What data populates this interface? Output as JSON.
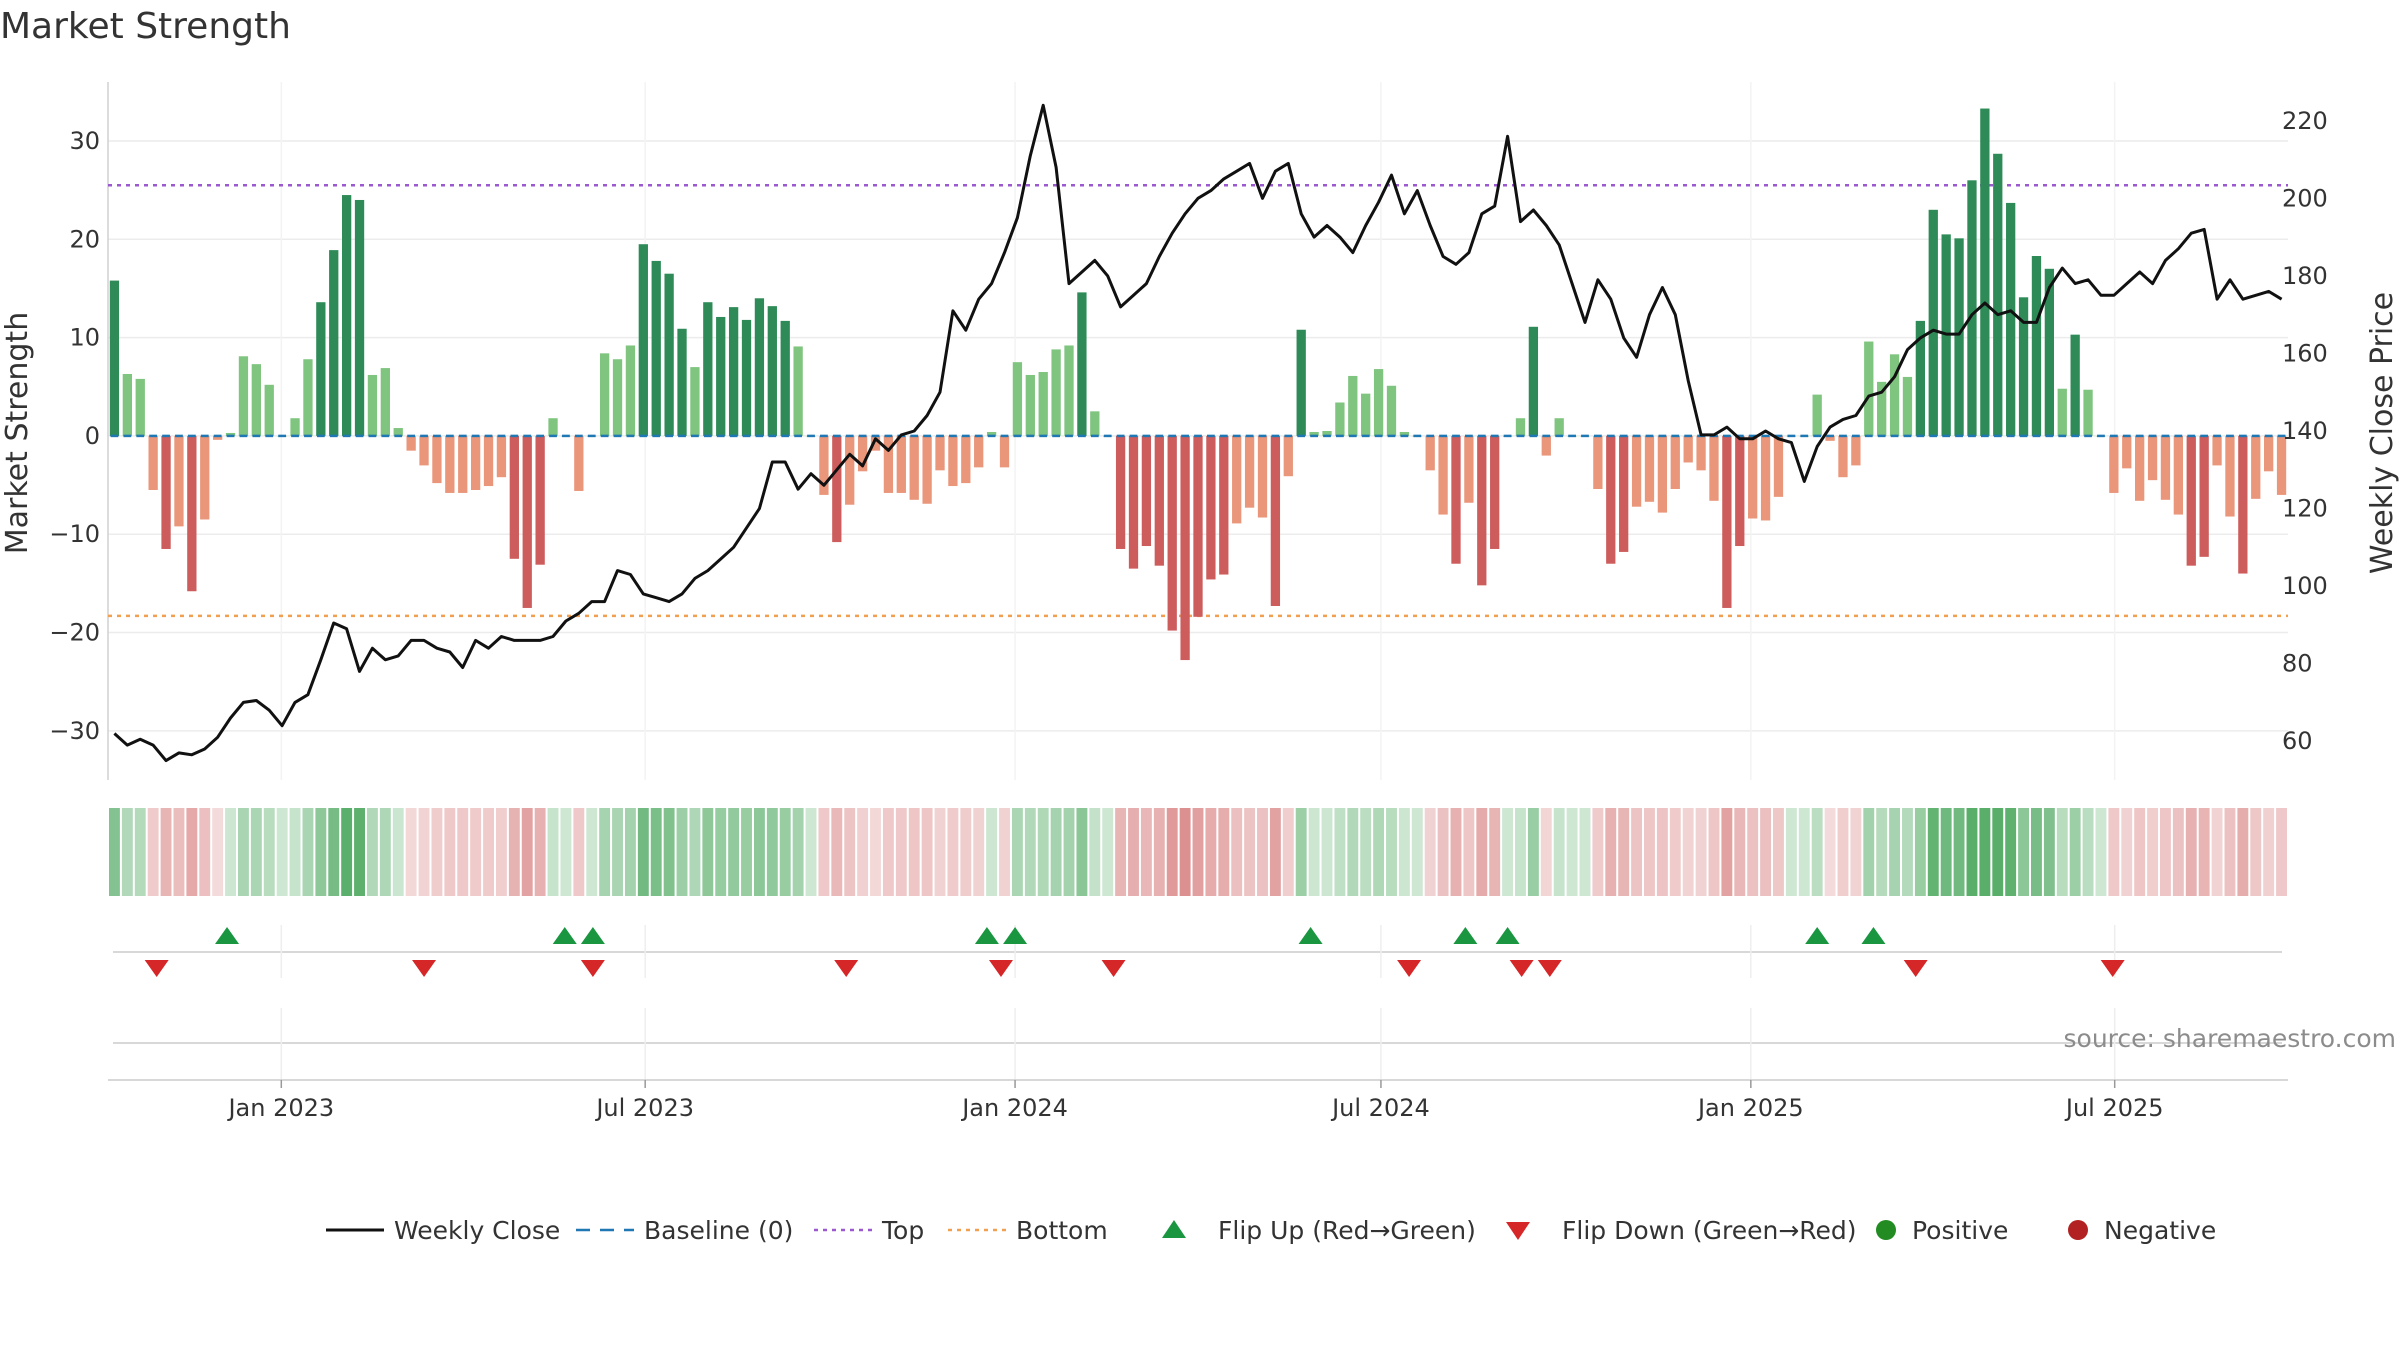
{
  "chart_data": {
    "type": "bar",
    "title": "Market Strength",
    "ylabel": "Market Strength",
    "y2label": "Weekly Close Price",
    "source": "source: sharemaestro.com",
    "ylim": [
      -35,
      36
    ],
    "y2lim": [
      50,
      230
    ],
    "yticks": [
      30,
      20,
      10,
      0,
      -10,
      -20,
      -30
    ],
    "ytick_labels": [
      "30",
      "20",
      "10",
      "0",
      "−10",
      "−20",
      "−30"
    ],
    "y2ticks": [
      220,
      200,
      180,
      160,
      140,
      120,
      100,
      80,
      60
    ],
    "top_line": 25.5,
    "bottom_line": -18.3,
    "baseline": 0,
    "x_start": "2022-10-10",
    "x_end": "2025-09-22",
    "xticks": [
      {
        "date": "2023-01-01",
        "label": "Jan 2023"
      },
      {
        "date": "2023-07-01",
        "label": "Jul 2023"
      },
      {
        "date": "2024-01-01",
        "label": "Jan 2024"
      },
      {
        "date": "2024-07-01",
        "label": "Jul 2024"
      },
      {
        "date": "2025-01-01",
        "label": "Jan 2025"
      },
      {
        "date": "2025-07-01",
        "label": "Jul 2025"
      }
    ],
    "strength": [
      15.8,
      6.3,
      5.8,
      -5.5,
      -11.5,
      -9.2,
      -15.8,
      -8.5,
      -0.4,
      0.3,
      8.1,
      7.3,
      5.2,
      0,
      1.8,
      7.8,
      13.6,
      18.9,
      24.5,
      24.0,
      6.2,
      6.9,
      0.8,
      -1.5,
      -3.0,
      -4.8,
      -5.8,
      -5.8,
      -5.5,
      -5.1,
      -4.2,
      -12.5,
      -17.5,
      -13.1,
      1.8,
      0,
      -5.6,
      0,
      8.4,
      7.8,
      9.2,
      19.5,
      17.8,
      16.5,
      10.9,
      7.0,
      13.6,
      12.1,
      13.1,
      11.8,
      14.0,
      13.2,
      11.7,
      9.1,
      0,
      -6.0,
      -10.8,
      -7.0,
      -3.6,
      -1.5,
      -5.8,
      -5.8,
      -6.5,
      -6.9,
      -3.5,
      -5.1,
      -4.8,
      -3.2,
      0.4,
      -3.2,
      7.5,
      6.2,
      6.5,
      8.8,
      9.2,
      14.6,
      2.5,
      0,
      -11.5,
      -13.5,
      -11.2,
      -13.2,
      -19.8,
      -22.8,
      -18.4,
      -14.6,
      -14.1,
      -8.9,
      -7.3,
      -8.3,
      -17.3,
      -4.1,
      10.8,
      0.4,
      0.5,
      3.4,
      6.1,
      4.3,
      6.8,
      5.1,
      0.4,
      0,
      -3.5,
      -8.0,
      -13.0,
      -6.8,
      -15.2,
      -11.5,
      0,
      1.8,
      11.1,
      -2.0,
      1.8,
      0,
      0,
      -5.4,
      -13.0,
      -11.8,
      -7.2,
      -6.7,
      -7.8,
      -5.4,
      -2.7,
      -3.5,
      -6.6,
      -17.5,
      -11.2,
      -8.4,
      -8.6,
      -6.2,
      0,
      0,
      4.2,
      -0.5,
      -4.2,
      -3.0,
      9.6,
      5.5,
      8.3,
      6.0,
      11.7,
      23.0,
      20.5,
      20.1,
      26.0,
      33.3,
      28.7,
      23.7,
      14.1,
      18.3,
      17.0,
      4.8,
      10.3,
      4.7,
      0,
      -5.8,
      -3.3,
      -6.6,
      -4.5,
      -6.5,
      -8.0,
      -13.2,
      -12.3,
      -3.0,
      -8.2,
      -14.0,
      -6.4,
      -3.6,
      -6.0
    ],
    "close": [
      62,
      59,
      60.5,
      59,
      55,
      57,
      56.5,
      58,
      61,
      66,
      70,
      70.5,
      68,
      64,
      70,
      72,
      81,
      90.5,
      89,
      78,
      84,
      81,
      82,
      86,
      86,
      84,
      83,
      79,
      86,
      84,
      87,
      86,
      86,
      86,
      87,
      91,
      93,
      96,
      96,
      104,
      103,
      98,
      97,
      96,
      98,
      102,
      104,
      107,
      110,
      115,
      120,
      132,
      132,
      125,
      129,
      126,
      130,
      134,
      131,
      138,
      135,
      139,
      140,
      144,
      150,
      171,
      166,
      174,
      178,
      186,
      195,
      211,
      224,
      208,
      178,
      181,
      184,
      180,
      172,
      175,
      178,
      185,
      191,
      196,
      200,
      202,
      205,
      207,
      209,
      200,
      207,
      209,
      196,
      190,
      193,
      190,
      186,
      193,
      199,
      206,
      196,
      202,
      193,
      185,
      183,
      186,
      196,
      198,
      216,
      194,
      197,
      193,
      188,
      178,
      168,
      179,
      174,
      164,
      159,
      170,
      177,
      170,
      153,
      139,
      139,
      141,
      138,
      138,
      140,
      138,
      137,
      127,
      136,
      141,
      143,
      144,
      149,
      150,
      154,
      161,
      164,
      166,
      165,
      165,
      170,
      173,
      170,
      171,
      168,
      168,
      177,
      182,
      178,
      179,
      175,
      175,
      178,
      181,
      178,
      184,
      187,
      191,
      192,
      174,
      179,
      174,
      175,
      176,
      174
    ]
  },
  "flip_up_dates": [
    "2022-12-05",
    "2023-05-22",
    "2023-06-05",
    "2023-12-18",
    "2024-01-01",
    "2024-05-27",
    "2024-08-12",
    "2024-09-02",
    "2025-02-03",
    "2025-03-03"
  ],
  "flip_down_dates": [
    "2022-10-31",
    "2023-03-13",
    "2023-06-05",
    "2023-10-09",
    "2023-12-25",
    "2024-02-19",
    "2024-07-15",
    "2024-09-09",
    "2024-09-23",
    "2025-03-24",
    "2025-06-30"
  ],
  "colors": {
    "pos_strong": "#2e8b57",
    "pos_weak": "#7fc47f",
    "neg_strong": "#cd5c5c",
    "neg_weak": "#e9967a",
    "line": "#111111",
    "baseline": "#1f77b4",
    "top": "#9b59d0",
    "bottom": "#f0a050",
    "flip_up": "#1a9641",
    "flip_down": "#d62728",
    "positive": "#228b22",
    "negative": "#b22222"
  },
  "legend": [
    {
      "key": "line",
      "label": "Weekly Close"
    },
    {
      "key": "baseline",
      "label": "Baseline (0)"
    },
    {
      "key": "top",
      "label": "Top"
    },
    {
      "key": "bottom",
      "label": "Bottom"
    },
    {
      "key": "flip_up",
      "label": "Flip Up (Red→Green)"
    },
    {
      "key": "flip_down",
      "label": "Flip Down (Green→Red)"
    },
    {
      "key": "positive",
      "label": "Positive"
    },
    {
      "key": "negative",
      "label": "Negative"
    }
  ]
}
